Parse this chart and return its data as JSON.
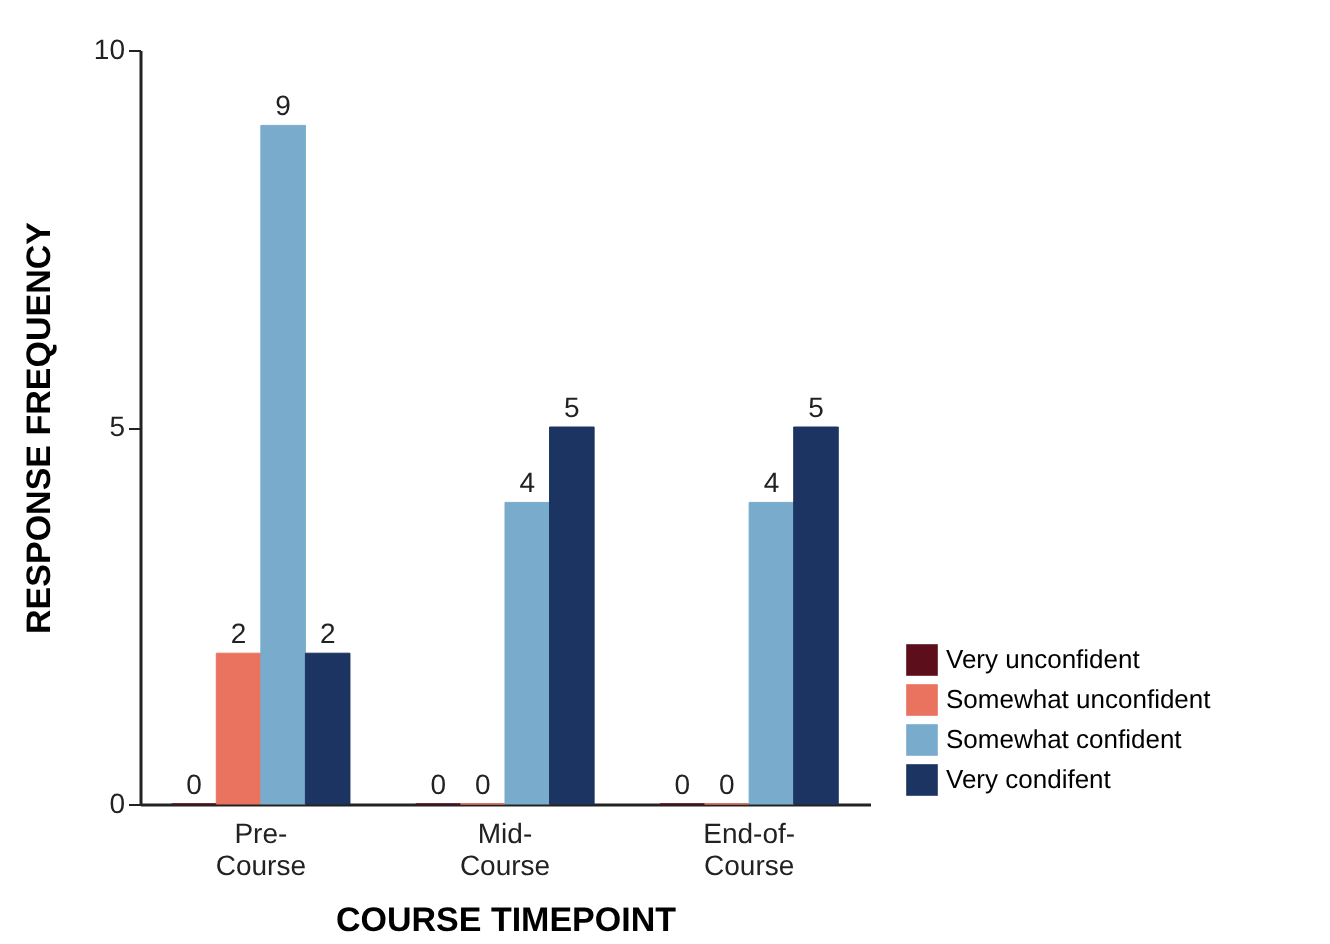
{
  "chart_data": {
    "type": "bar",
    "xlabel": "COURSE TIMEPOINT",
    "ylabel": "RESPONSE FREQUENCY",
    "categories": [
      "Pre-Course",
      "Mid-Course",
      "End-of-Course"
    ],
    "series": [
      {
        "name": "Very unconfident",
        "color": "#5c0f1b",
        "values": [
          0,
          0,
          0
        ]
      },
      {
        "name": "Somewhat unconfident",
        "color": "#e9735f",
        "values": [
          2,
          0,
          0
        ]
      },
      {
        "name": "Somewhat confident",
        "color": "#79abcc",
        "values": [
          9,
          4,
          4
        ]
      },
      {
        "name": "Very condifent",
        "color": "#1c3461",
        "values": [
          2,
          5,
          5
        ]
      }
    ],
    "ylim": [
      0,
      10
    ],
    "yticks": [
      0,
      5,
      10
    ],
    "grid": false,
    "legend": "bottom right",
    "data_labels": true
  }
}
